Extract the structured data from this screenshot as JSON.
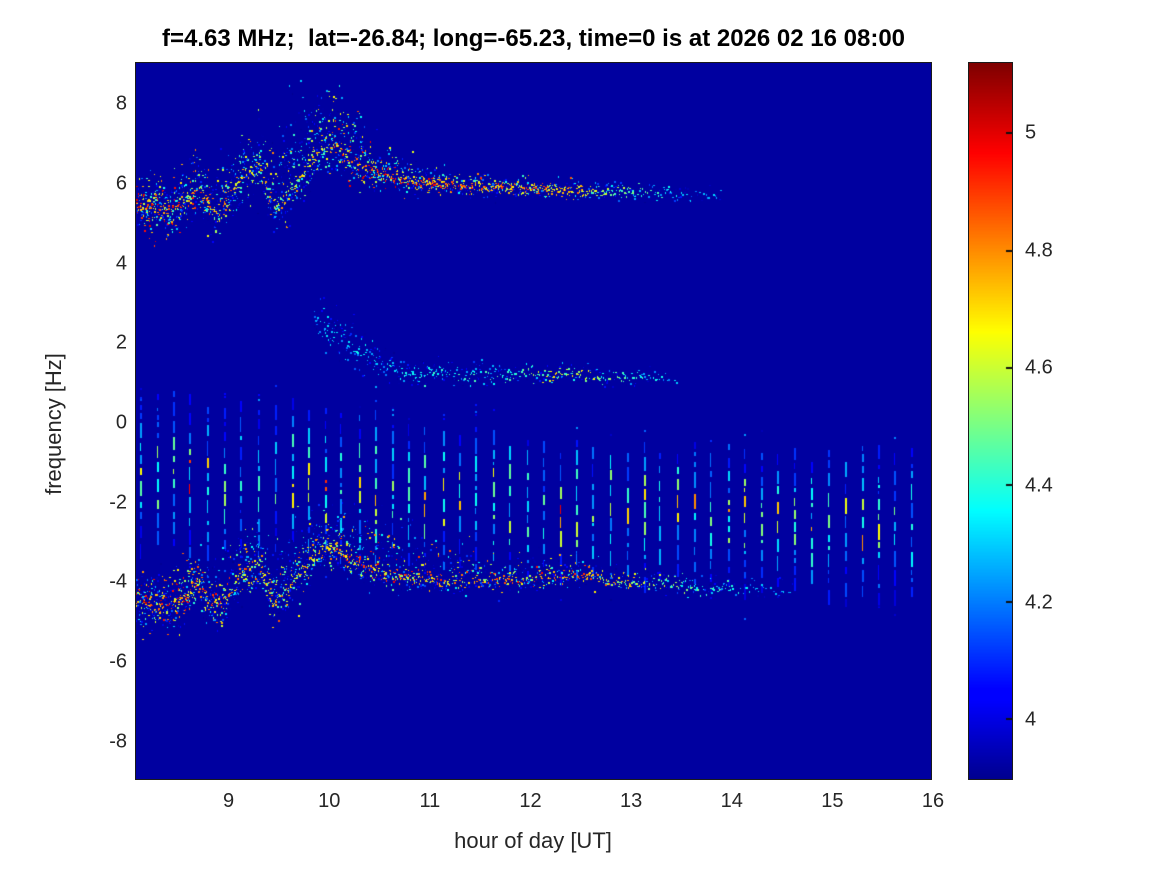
{
  "chart_data": {
    "type": "heatmap",
    "title": "f=4.63 MHz;  lat=-26.84; long=-65.23, time=0 is at 2026 02 16 08:00",
    "xlabel": "hour of day [UT]",
    "ylabel": "frequency [Hz]",
    "xlim": [
      8.08,
      15.98
    ],
    "ylim": [
      -8.93,
      9.03
    ],
    "x_ticks": [
      9,
      10,
      11,
      12,
      13,
      14,
      15,
      16
    ],
    "y_ticks": [
      8,
      6,
      4,
      2,
      0,
      -2,
      -4,
      -6,
      -8
    ],
    "grid": false,
    "colormap": "jet",
    "clim": [
      3.9,
      5.12
    ],
    "background_value": 3.92,
    "colorbar": {
      "position": "right",
      "ticks": [
        5,
        4.8,
        4.6,
        4.4,
        4.2,
        4
      ],
      "tick_labels": [
        "5",
        "4.8",
        "4.6",
        "4.4",
        "4.2",
        "4"
      ]
    },
    "seed": 1234567,
    "features": {
      "pulse_train": {
        "description": "periodic vertical pulse stripes",
        "start_hour": 8.12,
        "end_hour": 15.95,
        "interval_hours": 0.1667,
        "x_jitter_hours": 0.02,
        "end_jitter_hz": 0.5,
        "top_hz": [
          [
            8.1,
            0.6
          ],
          [
            9.5,
            0.45
          ],
          [
            10.5,
            0.2
          ],
          [
            11.5,
            -0.2
          ],
          [
            12.2,
            -0.55
          ],
          [
            14.0,
            -0.7
          ],
          [
            16.0,
            -0.8
          ]
        ],
        "bottom_hz": [
          [
            8.1,
            -3.1
          ],
          [
            10.0,
            -3.3
          ],
          [
            11.5,
            -3.6
          ],
          [
            12.3,
            -3.9
          ],
          [
            14.0,
            -4.1
          ],
          [
            16.0,
            -4.3
          ]
        ],
        "hot_center_hz": [
          [
            8.1,
            -1.2
          ],
          [
            12.3,
            -2.1
          ],
          [
            16.0,
            -2.5
          ]
        ],
        "hot_halfwidth_hz": 1.05,
        "base_value": 4.15,
        "peak_value": 5.08,
        "min_strength": 0.45
      },
      "traces": [
        {
          "name": "upper-doppler-trace",
          "points": [
            [
              8.08,
              5.5
            ],
            [
              8.25,
              5.45
            ],
            [
              8.4,
              5.35
            ],
            [
              8.55,
              5.6
            ],
            [
              8.7,
              5.95
            ],
            [
              8.85,
              5.35
            ],
            [
              9.0,
              5.75
            ],
            [
              9.15,
              6.25
            ],
            [
              9.3,
              6.55
            ],
            [
              9.45,
              5.5
            ],
            [
              9.6,
              5.9
            ],
            [
              9.75,
              6.35
            ],
            [
              9.9,
              6.85
            ],
            [
              10.05,
              7.0
            ],
            [
              10.2,
              6.65
            ],
            [
              10.35,
              6.4
            ],
            [
              10.5,
              6.3
            ],
            [
              10.8,
              6.1
            ],
            [
              11.2,
              6.0
            ],
            [
              11.6,
              5.95
            ],
            [
              12.0,
              5.9
            ],
            [
              12.5,
              5.85
            ],
            [
              13.0,
              5.8
            ],
            [
              13.5,
              5.75
            ],
            [
              13.95,
              5.7
            ]
          ],
          "spread_up": [
            [
              8.08,
              0.3
            ],
            [
              9.2,
              0.5
            ],
            [
              9.6,
              0.8
            ],
            [
              10.1,
              0.6
            ],
            [
              10.5,
              0.35
            ],
            [
              11.0,
              0.15
            ],
            [
              12.0,
              0.12
            ],
            [
              13.95,
              0.1
            ]
          ],
          "spread_down": [
            [
              8.08,
              0.3
            ],
            [
              9.2,
              0.35
            ],
            [
              10.1,
              0.3
            ],
            [
              11.0,
              0.12
            ],
            [
              13.95,
              0.08
            ]
          ],
          "density": [
            [
              8.08,
              7
            ],
            [
              9.0,
              6
            ],
            [
              9.9,
              7
            ],
            [
              10.6,
              5
            ],
            [
              11.2,
              3.5
            ],
            [
              12.0,
              3
            ],
            [
              12.6,
              2.2
            ],
            [
              13.2,
              1.2
            ],
            [
              13.7,
              0.6
            ],
            [
              13.95,
              0.3
            ]
          ],
          "vmax": [
            [
              8.08,
              5.1
            ],
            [
              8.6,
              4.95
            ],
            [
              9.3,
              4.85
            ],
            [
              9.8,
              4.8
            ],
            [
              10.3,
              5.05
            ],
            [
              11.0,
              5.0
            ],
            [
              11.8,
              4.95
            ],
            [
              12.4,
              4.9
            ],
            [
              12.9,
              4.6
            ],
            [
              13.4,
              4.4
            ],
            [
              13.95,
              4.3
            ]
          ]
        },
        {
          "name": "aliased-lower-trace",
          "points": [
            [
              8.08,
              -4.45
            ],
            [
              8.25,
              -4.5
            ],
            [
              8.4,
              -4.6
            ],
            [
              8.55,
              -4.35
            ],
            [
              8.7,
              -4.0
            ],
            [
              8.85,
              -4.6
            ],
            [
              9.0,
              -4.2
            ],
            [
              9.15,
              -3.7
            ],
            [
              9.3,
              -3.45
            ],
            [
              9.45,
              -4.45
            ],
            [
              9.6,
              -4.05
            ],
            [
              9.75,
              -3.6
            ],
            [
              9.9,
              -3.15
            ],
            [
              10.05,
              -3.05
            ],
            [
              10.2,
              -3.35
            ],
            [
              10.35,
              -3.55
            ],
            [
              10.5,
              -3.65
            ],
            [
              10.8,
              -3.8
            ],
            [
              11.2,
              -3.9
            ],
            [
              11.6,
              -3.9
            ],
            [
              12.0,
              -3.85
            ],
            [
              12.5,
              -3.8
            ],
            [
              12.9,
              -3.95
            ],
            [
              13.3,
              -4.0
            ],
            [
              13.7,
              -4.1
            ],
            [
              14.1,
              -4.15
            ],
            [
              14.6,
              -4.2
            ]
          ],
          "spread_up": [
            [
              8.08,
              0.3
            ],
            [
              9.6,
              0.6
            ],
            [
              10.1,
              0.5
            ],
            [
              10.6,
              0.7
            ],
            [
              11.2,
              0.4
            ],
            [
              11.8,
              0.3
            ],
            [
              12.5,
              0.2
            ],
            [
              14.6,
              0.12
            ]
          ],
          "spread_down": [
            [
              8.08,
              0.35
            ],
            [
              9.0,
              0.3
            ],
            [
              10.0,
              0.25
            ],
            [
              11.0,
              0.15
            ],
            [
              14.6,
              0.08
            ]
          ],
          "density": [
            [
              8.08,
              7
            ],
            [
              9.0,
              6
            ],
            [
              10.0,
              6
            ],
            [
              10.8,
              4
            ],
            [
              11.5,
              3
            ],
            [
              12.3,
              2.5
            ],
            [
              13.0,
              2
            ],
            [
              13.8,
              1.2
            ],
            [
              14.3,
              0.6
            ],
            [
              14.6,
              0.3
            ]
          ],
          "vmax": [
            [
              8.08,
              5.1
            ],
            [
              8.6,
              5.0
            ],
            [
              9.3,
              4.9
            ],
            [
              9.9,
              4.85
            ],
            [
              10.4,
              5.05
            ],
            [
              11.2,
              4.9
            ],
            [
              12.0,
              5.0
            ],
            [
              12.6,
              4.95
            ],
            [
              13.2,
              4.7
            ],
            [
              13.8,
              4.5
            ],
            [
              14.6,
              4.3
            ]
          ]
        },
        {
          "name": "secondary-trace",
          "points": [
            [
              9.85,
              2.6
            ],
            [
              9.95,
              2.45
            ],
            [
              10.1,
              2.1
            ],
            [
              10.3,
              1.8
            ],
            [
              10.5,
              1.55
            ],
            [
              10.7,
              1.3
            ],
            [
              10.9,
              1.2
            ],
            [
              11.1,
              1.35
            ],
            [
              11.3,
              1.15
            ],
            [
              11.5,
              1.3
            ],
            [
              11.7,
              1.2
            ],
            [
              11.9,
              1.3
            ],
            [
              12.1,
              1.2
            ],
            [
              12.35,
              1.3
            ],
            [
              12.6,
              1.2
            ],
            [
              12.85,
              1.15
            ],
            [
              13.1,
              1.2
            ],
            [
              13.45,
              1.1
            ]
          ],
          "spread_up": [
            [
              9.85,
              0.5
            ],
            [
              10.3,
              0.25
            ],
            [
              10.8,
              0.15
            ],
            [
              13.45,
              0.12
            ]
          ],
          "spread_down": [
            [
              9.85,
              0.3
            ],
            [
              10.8,
              0.12
            ],
            [
              13.45,
              0.1
            ]
          ],
          "density": [
            [
              9.85,
              2.5
            ],
            [
              10.5,
              2
            ],
            [
              11.0,
              1.6
            ],
            [
              12.0,
              1.6
            ],
            [
              12.8,
              1.3
            ],
            [
              13.2,
              0.8
            ],
            [
              13.45,
              0.4
            ]
          ],
          "vmax": [
            [
              9.85,
              4.35
            ],
            [
              10.5,
              4.4
            ],
            [
              11.0,
              4.45
            ],
            [
              11.8,
              4.5
            ],
            [
              12.2,
              4.75
            ],
            [
              12.6,
              4.7
            ],
            [
              13.0,
              4.5
            ],
            [
              13.45,
              4.35
            ]
          ]
        }
      ]
    }
  }
}
